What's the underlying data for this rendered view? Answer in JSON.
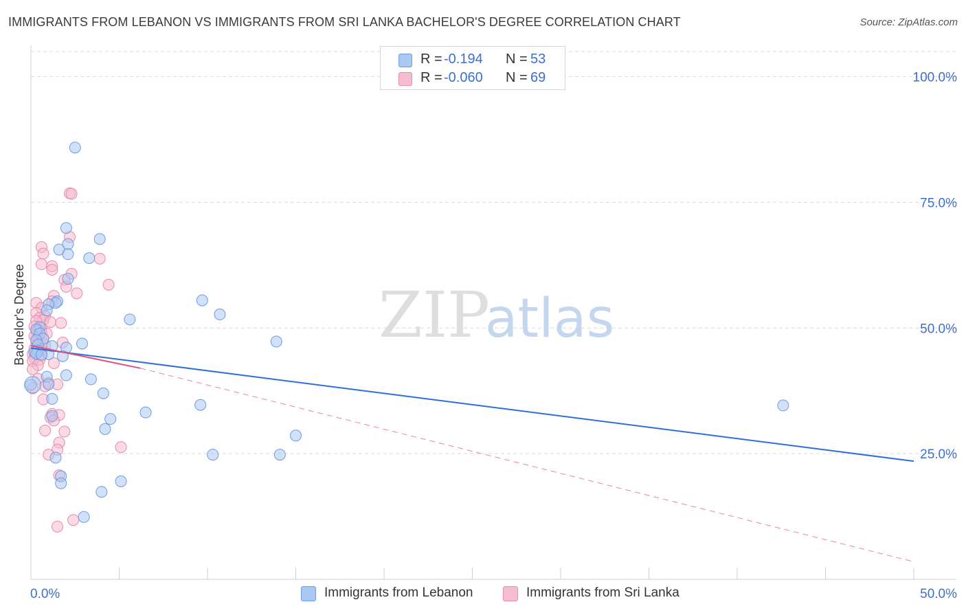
{
  "title": "IMMIGRANTS FROM LEBANON VS IMMIGRANTS FROM SRI LANKA BACHELOR'S DEGREE CORRELATION CHART",
  "source": "Source: ZipAtlas.com",
  "watermark": {
    "zip": "ZIP",
    "atlas": "atlas"
  },
  "colors": {
    "blue_fill": "#a9c8f2",
    "blue_stroke": "#6f9be0",
    "blue_line": "#2e6fd6",
    "pink_fill": "#f6bcd0",
    "pink_stroke": "#e88aaa",
    "pink_line": "#e0507c",
    "axis_text": "#3b6fd0",
    "grid": "#d9d9d9"
  },
  "legend_top": [
    {
      "r_label": "R =",
      "r_value": "-0.194",
      "n_label": "N =",
      "n_value": "53",
      "color": "#a9c8f2",
      "stroke": "#6f9be0"
    },
    {
      "r_label": "R =",
      "r_value": "-0.060",
      "n_label": "N =",
      "n_value": "69",
      "color": "#f6bcd0",
      "stroke": "#e88aaa"
    }
  ],
  "legend_bottom": [
    {
      "label": "Immigrants from Lebanon",
      "color": "#a9c8f2",
      "stroke": "#6f9be0"
    },
    {
      "label": "Immigrants from Sri Lanka",
      "color": "#f6bcd0",
      "stroke": "#e88aaa"
    }
  ],
  "chart_data": {
    "type": "scatter",
    "title": "IMMIGRANTS FROM LEBANON VS IMMIGRANTS FROM SRI LANKA BACHELOR'S DEGREE CORRELATION CHART",
    "xlabel": "",
    "ylabel": "Bachelor's Degree",
    "xlim": [
      0,
      50
    ],
    "ylim": [
      0,
      105
    ],
    "x_tick_labels": [
      {
        "value": 0,
        "label": "0.0%"
      },
      {
        "value": 50,
        "label": "50.0%"
      }
    ],
    "x_minor_ticks": [
      5,
      10,
      15,
      20,
      25,
      30,
      35,
      40,
      45,
      50
    ],
    "y_tick_labels": [
      {
        "value": 25,
        "label": "25.0%"
      },
      {
        "value": 50,
        "label": "50.0%"
      },
      {
        "value": 75,
        "label": "75.0%"
      },
      {
        "value": 100,
        "label": "100.0%"
      }
    ],
    "series": [
      {
        "name": "Immigrants from Lebanon",
        "r": -0.194,
        "n": 53,
        "trend": {
          "x": [
            0,
            50
          ],
          "y": [
            46.0,
            23.5
          ],
          "style": "solid"
        },
        "points": [
          [
            2.5,
            85.9
          ],
          [
            2.0,
            69.9
          ],
          [
            3.9,
            67.7
          ],
          [
            2.1,
            66.7
          ],
          [
            1.6,
            65.6
          ],
          [
            2.1,
            64.7
          ],
          [
            3.3,
            63.9
          ],
          [
            2.1,
            59.8
          ],
          [
            9.7,
            55.5
          ],
          [
            1.5,
            55.3
          ],
          [
            1.4,
            55.0
          ],
          [
            1.0,
            54.7
          ],
          [
            0.9,
            53.5
          ],
          [
            10.7,
            52.7
          ],
          [
            5.6,
            51.7
          ],
          [
            0.5,
            50.2
          ],
          [
            0.3,
            49.7
          ],
          [
            0.5,
            48.9
          ],
          [
            0.7,
            47.9
          ],
          [
            0.3,
            47.6
          ],
          [
            13.9,
            47.3
          ],
          [
            2.9,
            46.9
          ],
          [
            0.4,
            46.7
          ],
          [
            1.2,
            46.4
          ],
          [
            2.0,
            46.1
          ],
          [
            0.4,
            45.5
          ],
          [
            0.2,
            45.2
          ],
          [
            0.3,
            44.9
          ],
          [
            1.0,
            44.8
          ],
          [
            0.6,
            44.7
          ],
          [
            1.8,
            44.4
          ],
          [
            2.0,
            40.6
          ],
          [
            0.9,
            40.3
          ],
          [
            3.4,
            39.8
          ],
          [
            1.0,
            38.8
          ],
          [
            0.0,
            38.7
          ],
          [
            4.1,
            37.0
          ],
          [
            1.2,
            35.9
          ],
          [
            9.6,
            34.7
          ],
          [
            42.6,
            34.6
          ],
          [
            6.5,
            33.2
          ],
          [
            1.2,
            32.5
          ],
          [
            4.5,
            31.9
          ],
          [
            4.2,
            29.9
          ],
          [
            15.0,
            28.6
          ],
          [
            10.3,
            24.8
          ],
          [
            14.1,
            24.8
          ],
          [
            1.4,
            24.2
          ],
          [
            1.7,
            20.5
          ],
          [
            5.1,
            19.5
          ],
          [
            1.7,
            19.1
          ],
          [
            4.0,
            17.4
          ],
          [
            3.0,
            12.4
          ]
        ]
      },
      {
        "name": "Immigrants from Sri Lanka",
        "r": -0.06,
        "n": 69,
        "trend": {
          "x": [
            0,
            6.2
          ],
          "y": [
            46.5,
            42.0
          ],
          "style": "solid",
          "ext_x": [
            6.2,
            50
          ],
          "ext_y": [
            42.0,
            3.5
          ],
          "ext_style": "dashed"
        },
        "points": [
          [
            2.2,
            76.8
          ],
          [
            2.3,
            76.7
          ],
          [
            2.2,
            68.1
          ],
          [
            0.6,
            66.1
          ],
          [
            0.7,
            64.8
          ],
          [
            3.9,
            63.8
          ],
          [
            0.6,
            62.7
          ],
          [
            1.2,
            62.3
          ],
          [
            1.2,
            61.6
          ],
          [
            2.3,
            60.8
          ],
          [
            1.9,
            59.6
          ],
          [
            2.0,
            58.2
          ],
          [
            4.4,
            58.6
          ],
          [
            2.6,
            56.9
          ],
          [
            1.3,
            56.4
          ],
          [
            1.2,
            55.3
          ],
          [
            0.3,
            55.0
          ],
          [
            0.6,
            54.0
          ],
          [
            0.3,
            53.0
          ],
          [
            0.8,
            52.4
          ],
          [
            0.5,
            52.0
          ],
          [
            0.7,
            51.6
          ],
          [
            0.3,
            51.4
          ],
          [
            1.1,
            51.2
          ],
          [
            1.7,
            51.0
          ],
          [
            0.2,
            50.3
          ],
          [
            0.6,
            50.0
          ],
          [
            0.4,
            49.6
          ],
          [
            0.3,
            49.3
          ],
          [
            0.6,
            49.1
          ],
          [
            0.9,
            48.9
          ],
          [
            0.2,
            48.4
          ],
          [
            0.4,
            48.0
          ],
          [
            0.7,
            47.7
          ],
          [
            0.3,
            47.3
          ],
          [
            1.8,
            47.1
          ],
          [
            0.5,
            46.9
          ],
          [
            0.8,
            46.6
          ],
          [
            0.3,
            46.3
          ],
          [
            0.2,
            45.9
          ],
          [
            0.6,
            45.5
          ],
          [
            0.4,
            45.1
          ],
          [
            0.1,
            44.8
          ],
          [
            0.6,
            44.5
          ],
          [
            0.2,
            44.1
          ],
          [
            0.5,
            43.7
          ],
          [
            0.1,
            43.4
          ],
          [
            1.3,
            43.0
          ],
          [
            0.4,
            42.6
          ],
          [
            0.1,
            41.8
          ],
          [
            0.4,
            39.9
          ],
          [
            1.0,
            39.1
          ],
          [
            1.5,
            38.8
          ],
          [
            0.8,
            38.4
          ],
          [
            0.1,
            38.0
          ],
          [
            0.7,
            35.8
          ],
          [
            1.2,
            32.9
          ],
          [
            1.6,
            32.7
          ],
          [
            1.1,
            32.2
          ],
          [
            1.3,
            31.6
          ],
          [
            0.8,
            29.6
          ],
          [
            1.9,
            29.4
          ],
          [
            1.6,
            27.2
          ],
          [
            5.1,
            26.3
          ],
          [
            1.5,
            25.8
          ],
          [
            1.0,
            24.8
          ],
          [
            1.6,
            20.7
          ],
          [
            2.4,
            11.8
          ],
          [
            1.5,
            10.5
          ]
        ]
      }
    ]
  }
}
